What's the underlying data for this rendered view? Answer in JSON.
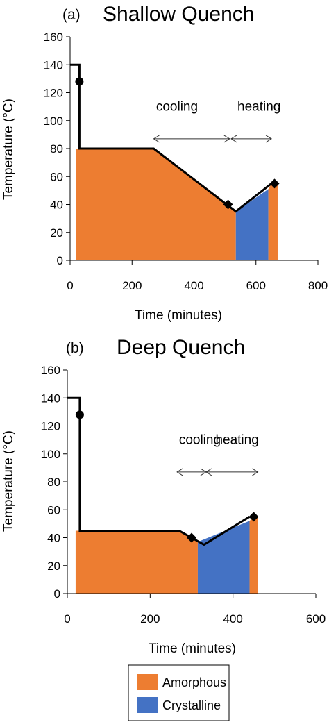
{
  "colors": {
    "amorphous": "#ED7D31",
    "crystalline": "#4472C4",
    "line": "#000000"
  },
  "legend": {
    "items": [
      {
        "label": "Amorphous",
        "color": "#ED7D31"
      },
      {
        "label": "Crystalline",
        "color": "#4472C4"
      }
    ]
  },
  "chart_data": [
    {
      "type": "area",
      "panel_label": "(a)",
      "title": "Shallow Quench",
      "xlabel": "Time (minutes)",
      "ylabel": "Temperature (°C)",
      "xlim": [
        0,
        800
      ],
      "ylim": [
        0,
        160
      ],
      "xticks": [
        "0",
        "200",
        "400",
        "600",
        "800"
      ],
      "yticks": [
        "0",
        "20",
        "40",
        "60",
        "80",
        "100",
        "120",
        "140",
        "160"
      ],
      "temperature_profile": {
        "x": [
          0,
          30,
          30,
          270,
          535,
          650
        ],
        "y": [
          140,
          140,
          80,
          80,
          35,
          55
        ]
      },
      "series": [
        {
          "name": "Amorphous",
          "x": [
            20,
            30,
            30,
            270,
            535
          ],
          "y": [
            80,
            80,
            80,
            80,
            35
          ]
        },
        {
          "name": "Crystalline",
          "x": [
            535,
            640
          ],
          "y": [
            35,
            51
          ]
        },
        {
          "name": "Amorphous",
          "x": [
            640,
            650,
            670
          ],
          "y": [
            51,
            55,
            55
          ]
        }
      ],
      "markers": [
        {
          "shape": "circle",
          "x": 30,
          "y": 128
        },
        {
          "shape": "diamond",
          "x": 510,
          "y": 40
        },
        {
          "shape": "diamond",
          "x": 660,
          "y": 55
        }
      ],
      "annotations": [
        {
          "text": "cooling",
          "text_x": 345,
          "text_y": 107,
          "arrow_x": [
            270,
            515
          ],
          "arrow_y": 87
        },
        {
          "text": "heating",
          "text_x": 610,
          "text_y": 107,
          "arrow_x": [
            520,
            650
          ],
          "arrow_y": 87
        }
      ]
    },
    {
      "type": "area",
      "panel_label": "(b)",
      "title": "Deep Quench",
      "xlabel": "Time (minutes)",
      "ylabel": "Temperature (°C)",
      "xlim": [
        0,
        600
      ],
      "ylim": [
        0,
        160
      ],
      "xticks": [
        "0",
        "200",
        "400",
        "600"
      ],
      "yticks": [
        "0",
        "20",
        "40",
        "60",
        "80",
        "100",
        "120",
        "140",
        "160"
      ],
      "temperature_profile": {
        "x": [
          0,
          30,
          30,
          270,
          330,
          440
        ],
        "y": [
          140,
          140,
          45,
          45,
          35,
          55
        ]
      },
      "series": [
        {
          "name": "Amorphous",
          "x": [
            20,
            30,
            270,
            315
          ],
          "y": [
            45,
            45,
            45,
            37
          ]
        },
        {
          "name": "Crystalline",
          "x": [
            315,
            440
          ],
          "y": [
            37,
            52
          ]
        },
        {
          "name": "Amorphous",
          "x": [
            440,
            450,
            460
          ],
          "y": [
            52,
            55,
            55
          ]
        }
      ],
      "markers": [
        {
          "shape": "circle",
          "x": 30,
          "y": 128
        },
        {
          "shape": "diamond",
          "x": 300,
          "y": 40
        },
        {
          "shape": "diamond",
          "x": 450,
          "y": 55
        }
      ],
      "annotations": [
        {
          "text": "cooling",
          "text_x": 320,
          "text_y": 107,
          "arrow_x": [
            265,
            335
          ],
          "arrow_y": 87
        },
        {
          "text": "heating",
          "text_x": 410,
          "text_y": 107,
          "arrow_x": [
            335,
            460
          ],
          "arrow_y": 87
        }
      ]
    }
  ]
}
